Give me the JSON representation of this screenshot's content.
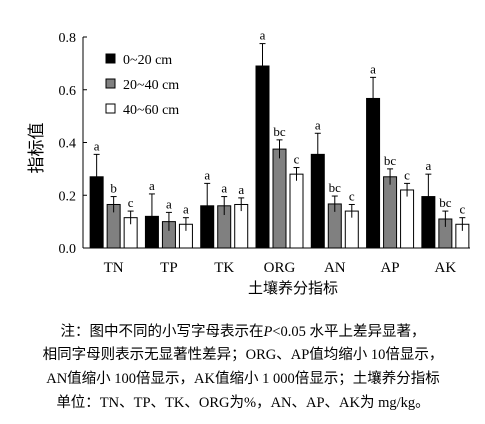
{
  "chart_data": {
    "type": "bar",
    "categories": [
      "TN",
      "TP",
      "TK",
      "ORG",
      "AN",
      "AP",
      "AK"
    ],
    "series": [
      {
        "name": "0~20 cm",
        "color": "#000000",
        "values": [
          0.27,
          0.12,
          0.16,
          0.69,
          0.355,
          0.567,
          0.195
        ],
        "errors": [
          0.085,
          0.085,
          0.085,
          0.085,
          0.08,
          0.08,
          0.085
        ],
        "labels": [
          "a",
          "a",
          "a",
          "a",
          "a",
          "a",
          "a"
        ]
      },
      {
        "name": "20~40 cm",
        "color": "#808080",
        "values": [
          0.165,
          0.1,
          0.16,
          0.375,
          0.167,
          0.27,
          0.11
        ],
        "errors": [
          0.03,
          0.035,
          0.035,
          0.035,
          0.03,
          0.03,
          0.03
        ],
        "labels": [
          "b",
          "a",
          "a",
          "bc",
          "bc",
          "bc",
          "bc"
        ]
      },
      {
        "name": "40~60 cm",
        "color": "#ffffff",
        "values": [
          0.115,
          0.09,
          0.165,
          0.28,
          0.14,
          0.22,
          0.09
        ],
        "errors": [
          0.025,
          0.025,
          0.025,
          0.025,
          0.025,
          0.025,
          0.025
        ],
        "labels": [
          "c",
          "a",
          "a",
          "c",
          "c",
          "c",
          "c"
        ]
      }
    ],
    "ylabel": "指标值",
    "xlabel": "土壤养分指标",
    "ylim": [
      0,
      0.8
    ],
    "yticks": [
      "0.0",
      "0.2",
      "0.4",
      "0.6",
      "0.8"
    ],
    "legend_position": "top-left",
    "grid": false
  },
  "note": {
    "line1_a": "注：图中不同的小写字母表示在",
    "line1_p": "P",
    "line1_b": "<0.05 水平上差异显著，",
    "line2": "相同字母则表示无显著性差异；ORG、AP值均缩小 10倍显示，",
    "line3": "AN值缩小 100倍显示，AK值缩小 1 000倍显示；土壤养分指标",
    "line4": "单位：TN、TP、TK、ORG为%，AN、AP、AK为 mg/kg。"
  }
}
